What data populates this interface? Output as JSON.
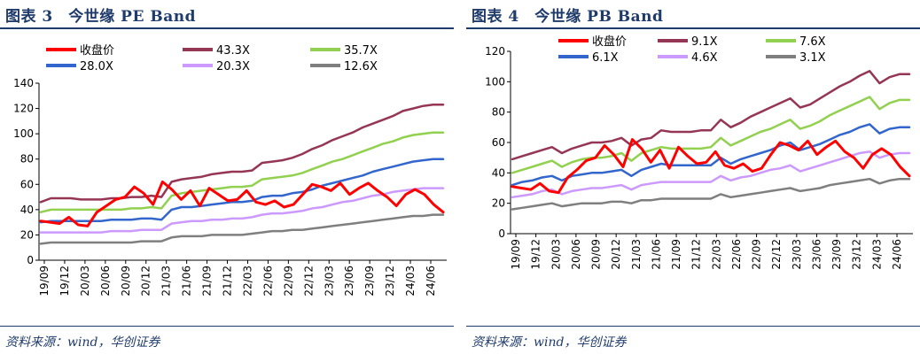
{
  "charts": [
    {
      "title": "图表 3　今世缘 PE Band",
      "source": "资料来源：wind，华创证券",
      "chart_data": {
        "type": "line",
        "ylim": [
          0,
          140
        ],
        "yticks": [
          0,
          20,
          40,
          60,
          80,
          100,
          120,
          140
        ],
        "x_tick_labels": [
          "19/09",
          "19/12",
          "20/03",
          "20/06",
          "20/09",
          "20/12",
          "21/03",
          "21/06",
          "21/09",
          "21/12",
          "22/03",
          "22/06",
          "22/09",
          "22/12",
          "23/03",
          "23/06",
          "23/09",
          "23/12",
          "24/03",
          "24/06"
        ],
        "grid": false,
        "legend": "top",
        "series": [
          {
            "name": "收盘价",
            "color": "#ff0000",
            "width": 3,
            "values": [
              31,
              30,
              29,
              34,
              28,
              27,
              38,
              43,
              48,
              50,
              58,
              53,
              44,
              62,
              56,
              48,
              55,
              43,
              57,
              52,
              47,
              48,
              55,
              46,
              44,
              47,
              42,
              44,
              52,
              60,
              58,
              55,
              61,
              52,
              57,
              61,
              55,
              50,
              43,
              52,
              56,
              52,
              44,
              38
            ]
          },
          {
            "name": "43.3X",
            "color": "#953654",
            "width": 2.5,
            "values": [
              46,
              49,
              49,
              49,
              48,
              48,
              48,
              49,
              49,
              50,
              50,
              51,
              50,
              62,
              64,
              65,
              66,
              68,
              69,
              70,
              70,
              71,
              77,
              78,
              79,
              81,
              84,
              88,
              91,
              95,
              98,
              101,
              105,
              108,
              111,
              114,
              118,
              120,
              122,
              123,
              123
            ]
          },
          {
            "name": "35.7X",
            "color": "#92d050",
            "width": 2.5,
            "values": [
              38,
              40,
              40,
              40,
              40,
              40,
              40,
              40,
              40,
              41,
              41,
              42,
              41,
              51,
              53,
              54,
              55,
              56,
              57,
              58,
              58,
              59,
              64,
              65,
              66,
              67,
              69,
              72,
              75,
              78,
              80,
              83,
              86,
              89,
              92,
              94,
              97,
              99,
              100,
              101,
              101
            ]
          },
          {
            "name": "28.0X",
            "color": "#3366cc",
            "width": 2.5,
            "values": [
              30,
              31,
              31,
              31,
              31,
              31,
              31,
              32,
              32,
              32,
              33,
              33,
              32,
              40,
              42,
              42,
              43,
              44,
              45,
              46,
              46,
              47,
              50,
              51,
              51,
              53,
              54,
              56,
              59,
              61,
              63,
              65,
              67,
              70,
              72,
              74,
              76,
              78,
              79,
              80,
              80
            ]
          },
          {
            "name": "20.3X",
            "color": "#cc99ff",
            "width": 2.5,
            "values": [
              22,
              22,
              22,
              22,
              22,
              22,
              22,
              23,
              23,
              23,
              24,
              24,
              24,
              29,
              30,
              31,
              31,
              32,
              32,
              33,
              33,
              34,
              36,
              37,
              37,
              38,
              39,
              41,
              42,
              44,
              46,
              47,
              49,
              51,
              52,
              54,
              55,
              56,
              57,
              57,
              57
            ]
          },
          {
            "name": "12.6X",
            "color": "#7f7f7f",
            "width": 2.5,
            "values": [
              13,
              14,
              14,
              14,
              14,
              14,
              14,
              14,
              14,
              14,
              15,
              15,
              15,
              18,
              19,
              19,
              19,
              20,
              20,
              20,
              20,
              21,
              22,
              23,
              23,
              24,
              24,
              25,
              26,
              27,
              28,
              29,
              30,
              31,
              32,
              33,
              34,
              35,
              35,
              36,
              36
            ]
          }
        ]
      }
    },
    {
      "title": "图表 4　今世缘 PB Band",
      "source": "资料来源：wind，华创证券",
      "chart_data": {
        "type": "line",
        "ylim": [
          0,
          120
        ],
        "yticks": [
          0,
          20,
          40,
          60,
          80,
          100,
          120
        ],
        "x_tick_labels": [
          "19/09",
          "19/12",
          "20/03",
          "20/06",
          "20/09",
          "20/12",
          "21/03",
          "21/06",
          "21/09",
          "21/12",
          "22/03",
          "22/06",
          "22/09",
          "22/12",
          "23/03",
          "23/06",
          "23/09",
          "23/12",
          "24/03",
          "24/06"
        ],
        "grid": false,
        "legend": "top",
        "series": [
          {
            "name": "收盘价",
            "color": "#ff0000",
            "width": 3,
            "values": [
              31,
              30,
              29,
              33,
              28,
              27,
              37,
              42,
              48,
              50,
              58,
              52,
              44,
              62,
              56,
              47,
              55,
              43,
              57,
              51,
              46,
              47,
              54,
              45,
              43,
              46,
              41,
              43,
              52,
              60,
              58,
              55,
              61,
              52,
              57,
              61,
              54,
              50,
              43,
              52,
              56,
              52,
              44,
              38
            ]
          },
          {
            "name": "9.1X",
            "color": "#953654",
            "width": 2.5,
            "values": [
              49,
              51,
              53,
              55,
              57,
              53,
              56,
              58,
              60,
              60,
              61,
              63,
              58,
              62,
              63,
              68,
              67,
              67,
              67,
              68,
              68,
              75,
              70,
              73,
              77,
              80,
              83,
              86,
              89,
              83,
              85,
              89,
              93,
              97,
              100,
              104,
              107,
              99,
              103,
              105,
              105
            ]
          },
          {
            "name": "7.6X",
            "color": "#92d050",
            "width": 2.5,
            "values": [
              40,
              42,
              44,
              46,
              48,
              44,
              47,
              49,
              50,
              50,
              51,
              53,
              48,
              53,
              55,
              57,
              56,
              56,
              56,
              56,
              57,
              63,
              58,
              61,
              64,
              67,
              69,
              72,
              75,
              69,
              71,
              74,
              78,
              81,
              84,
              87,
              90,
              82,
              86,
              88,
              88
            ]
          },
          {
            "name": "6.1X",
            "color": "#3366cc",
            "width": 2.5,
            "values": [
              32,
              34,
              35,
              37,
              38,
              35,
              38,
              39,
              40,
              40,
              41,
              42,
              38,
              42,
              44,
              46,
              45,
              45,
              45,
              45,
              45,
              50,
              46,
              49,
              51,
              53,
              55,
              58,
              60,
              55,
              57,
              59,
              62,
              65,
              67,
              70,
              72,
              66,
              69,
              70,
              70
            ]
          },
          {
            "name": "4.6X",
            "color": "#cc99ff",
            "width": 2.5,
            "values": [
              24,
              25,
              26,
              28,
              29,
              26,
              28,
              29,
              30,
              30,
              31,
              32,
              29,
              32,
              33,
              34,
              34,
              34,
              34,
              34,
              34,
              38,
              35,
              37,
              38,
              40,
              42,
              43,
              45,
              41,
              43,
              45,
              47,
              49,
              51,
              53,
              54,
              50,
              52,
              53,
              53
            ]
          },
          {
            "name": "3.1X",
            "color": "#7f7f7f",
            "width": 2.5,
            "values": [
              16,
              17,
              18,
              19,
              20,
              18,
              19,
              20,
              20,
              20,
              21,
              21,
              20,
              22,
              22,
              23,
              23,
              23,
              23,
              23,
              23,
              26,
              24,
              25,
              26,
              27,
              28,
              29,
              30,
              28,
              29,
              30,
              32,
              33,
              34,
              35,
              36,
              33,
              35,
              36,
              36
            ]
          }
        ]
      }
    }
  ]
}
